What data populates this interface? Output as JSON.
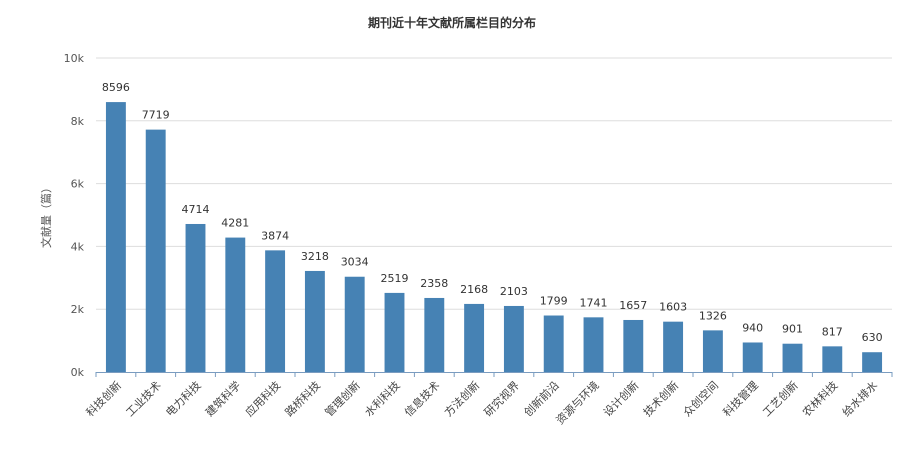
{
  "chart_data": {
    "type": "bar",
    "title": "期刊近十年文献所属栏目的分布",
    "ylabel": "文献量（篇）",
    "xlabel": "",
    "ylim": [
      0,
      10000
    ],
    "yticks": [
      "0k",
      "2k",
      "4k",
      "6k",
      "8k",
      "10k"
    ],
    "grid": true,
    "bar_color": "#4682b4",
    "categories": [
      "科技创新",
      "工业技术",
      "电力科技",
      "建筑科学",
      "应用科技",
      "路桥科技",
      "管理创新",
      "水利科技",
      "信息技术",
      "方法创新",
      "研究视界",
      "创新前沿",
      "资源与环境",
      "设计创新",
      "技术创新",
      "众创空间",
      "科技管理",
      "工艺创新",
      "农林科技",
      "给水排水"
    ],
    "values": [
      8596,
      7719,
      4714,
      4281,
      3874,
      3218,
      3034,
      2519,
      2358,
      2168,
      2103,
      1799,
      1741,
      1657,
      1603,
      1326,
      940,
      901,
      817,
      630
    ]
  }
}
